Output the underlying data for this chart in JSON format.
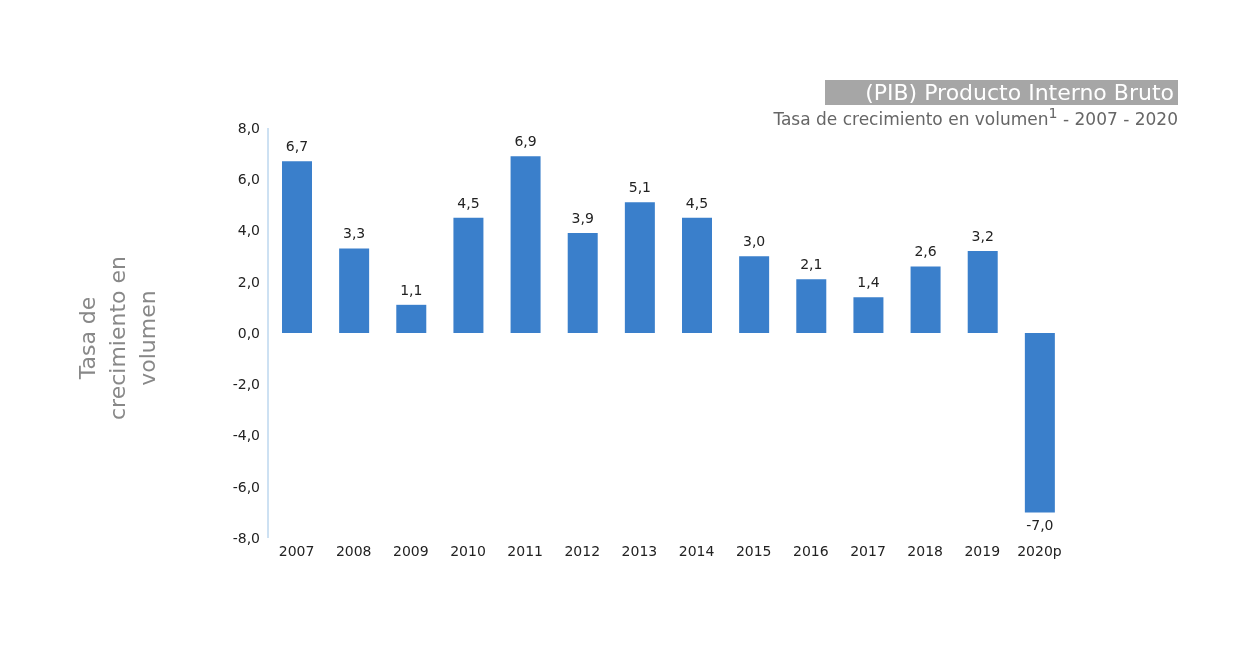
{
  "chart_data": {
    "type": "bar",
    "title": "(PIB) Producto Interno Bruto",
    "subtitle": "Tasa de crecimiento en volumen$^{1}$ - 2007 - 2020",
    "ylabel": "Tasa de crecimiento en volumen",
    "categories": [
      "2007",
      "2008",
      "2009",
      "2010",
      "2011",
      "2012",
      "2013",
      "2014",
      "2015",
      "2016",
      "2017",
      "2018",
      "2019",
      "2020p"
    ],
    "values": [
      6.7,
      3.3,
      1.1,
      4.5,
      6.9,
      3.9,
      5.1,
      4.5,
      3.0,
      2.1,
      1.4,
      2.6,
      3.2,
      -7.0
    ],
    "value_labels": [
      "6,7",
      "3,3",
      "1,1",
      "4,5",
      "6,9",
      "3,9",
      "5,1",
      "4,5",
      "3,0",
      "2,1",
      "1,4",
      "2,6",
      "3,2",
      "-7,0"
    ],
    "color": "#3a7fcb",
    "ylim": [
      -8,
      8
    ],
    "yticks": [
      {
        "value": -8,
        "label": "-8,0"
      },
      {
        "value": -6,
        "label": "-6,0"
      },
      {
        "value": -4,
        "label": "-4,0"
      },
      {
        "value": -2,
        "label": "-2,0"
      },
      {
        "value": 0,
        "label": "0,0"
      },
      {
        "value": 2,
        "label": "2,0"
      },
      {
        "value": 4,
        "label": "4,0"
      },
      {
        "value": 6,
        "label": "6,0"
      },
      {
        "value": 8,
        "label": "8,0"
      }
    ],
    "grid": false,
    "legend": false
  }
}
